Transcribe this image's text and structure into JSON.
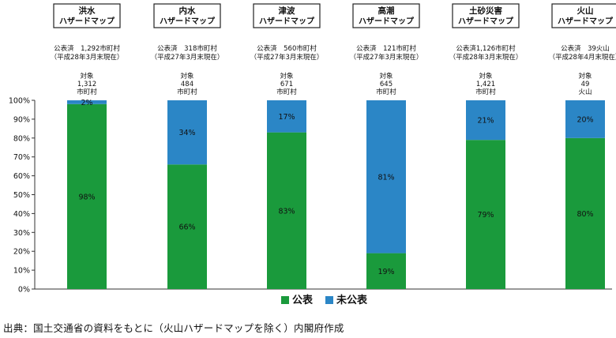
{
  "chart_data": {
    "type": "bar",
    "stacked": true,
    "percent": true,
    "ylim": [
      0,
      100
    ],
    "yticks": [
      "0%",
      "10%",
      "20%",
      "30%",
      "40%",
      "50%",
      "60%",
      "70%",
      "80%",
      "90%",
      "100%"
    ],
    "grid": false,
    "legend_position": "bottom-center",
    "categories": [
      {
        "header": [
          "洪水",
          "ハザードマップ"
        ],
        "published": [
          "公表済　1,292市町村",
          "（平成28年3月末現在）"
        ],
        "target": [
          "対象",
          "1,312",
          "市町村"
        ]
      },
      {
        "header": [
          "内水",
          "ハザードマップ"
        ],
        "published": [
          "公表済　318市町村",
          "（平成27年3月末現在）"
        ],
        "target": [
          "対象",
          "484",
          "市町村"
        ]
      },
      {
        "header": [
          "津波",
          "ハザードマップ"
        ],
        "published": [
          "公表済　560市町村",
          "（平成27年3月末現在）"
        ],
        "target": [
          "対象",
          "671",
          "市町村"
        ]
      },
      {
        "header": [
          "高潮",
          "ハザードマップ"
        ],
        "published": [
          "公表済　121市町村",
          "（平成27年3月末現在）"
        ],
        "target": [
          "対象",
          "645",
          "市町村"
        ]
      },
      {
        "header": [
          "土砂災害",
          "ハザードマップ"
        ],
        "published": [
          "公表済1,126市町村",
          "（平成28年3月末現在）"
        ],
        "target": [
          "対象",
          "1,421",
          "市町村"
        ]
      },
      {
        "header": [
          "火山",
          "ハザードマップ"
        ],
        "published": [
          "公表済　39火山",
          "（平成28年4月末現在）"
        ],
        "target": [
          "対象",
          "49",
          "火山"
        ]
      }
    ],
    "series": [
      {
        "name": "公表",
        "color": "#1a9a3c",
        "values": [
          98,
          66,
          83,
          19,
          79,
          80
        ],
        "labels": [
          "98%",
          "66%",
          "83%",
          "19%",
          "79%",
          "80%"
        ]
      },
      {
        "name": "未公表",
        "color": "#2b86c6",
        "values": [
          2,
          34,
          17,
          81,
          21,
          20
        ],
        "labels": [
          "2%",
          "34%",
          "17%",
          "81%",
          "21%",
          "20%"
        ]
      }
    ]
  },
  "source_note": "出典：国土交通省の資料をもとに（火山ハザードマップを除く）内閣府作成"
}
